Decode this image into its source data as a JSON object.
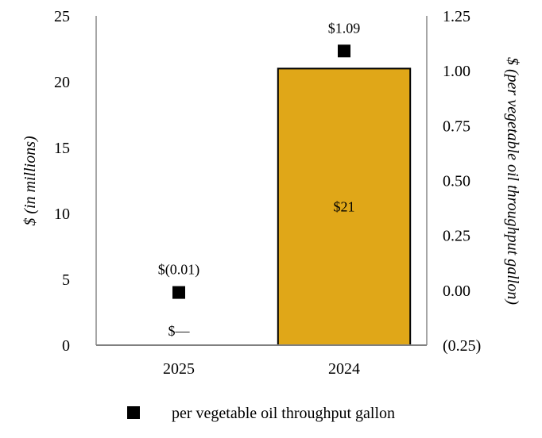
{
  "chart_data": {
    "type": "bar",
    "categories": [
      "2025",
      "2024"
    ],
    "series": [
      {
        "type": "bar",
        "axis": "left",
        "values": [
          0,
          21
        ],
        "value_labels": [
          "$—",
          "$21"
        ],
        "color": "#E0A718"
      },
      {
        "type": "scatter",
        "axis": "right",
        "name": "per vegetable oil throughput gallon",
        "values": [
          -0.01,
          1.09
        ],
        "value_labels": [
          "$(0.01)",
          "$1.09"
        ],
        "marker": "square",
        "color": "#000000"
      }
    ],
    "ylabel": "$ (in millions)",
    "ylim": [
      0,
      25
    ],
    "yticks": [
      "0",
      "5",
      "10",
      "15",
      "20",
      "25"
    ],
    "y2label": "$ (per vegetable oil throughput gallon)",
    "y2lim": [
      -0.25,
      1.25
    ],
    "y2ticks": [
      "(0.25)",
      "0.00",
      "0.25",
      "0.50",
      "0.75",
      "1.00",
      "1.25"
    ],
    "grid": false,
    "legend": {
      "position": "bottom",
      "entries": [
        "per vegetable oil throughput gallon"
      ]
    }
  }
}
